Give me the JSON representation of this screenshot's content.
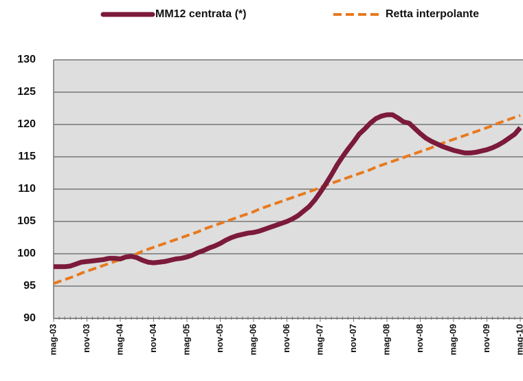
{
  "chart_data": {
    "type": "line",
    "categories": [
      "mag-03",
      null,
      null,
      null,
      null,
      null,
      "nov-03",
      null,
      null,
      null,
      null,
      null,
      "mag-04",
      null,
      null,
      null,
      null,
      null,
      "nov-04",
      null,
      null,
      null,
      null,
      null,
      "mag-05",
      null,
      null,
      null,
      null,
      null,
      "nov-05",
      null,
      null,
      null,
      null,
      null,
      "mag-06",
      null,
      null,
      null,
      null,
      null,
      "nov-06",
      null,
      null,
      null,
      null,
      null,
      "mag-07",
      null,
      null,
      null,
      null,
      null,
      "nov-07",
      null,
      null,
      null,
      null,
      null,
      "mag-08",
      null,
      null,
      null,
      null,
      null,
      "nov-08",
      null,
      null,
      null,
      null,
      null,
      "mag-09",
      null,
      null,
      null,
      null,
      null,
      "nov-09",
      null,
      null,
      null,
      null,
      null,
      "mag-10"
    ],
    "series": [
      {
        "name": "MM12 centrata (*)",
        "color": "#7b1a3a",
        "dash": false,
        "values": [
          98.0,
          98.0,
          98.0,
          98.1,
          98.4,
          98.7,
          98.8,
          98.9,
          99.0,
          99.1,
          99.3,
          99.3,
          99.2,
          99.5,
          99.6,
          99.4,
          99.0,
          98.7,
          98.6,
          98.7,
          98.8,
          99.0,
          99.2,
          99.3,
          99.5,
          99.8,
          100.2,
          100.5,
          100.9,
          101.2,
          101.6,
          102.1,
          102.5,
          102.8,
          103.0,
          103.2,
          103.3,
          103.5,
          103.8,
          104.1,
          104.4,
          104.7,
          105.0,
          105.4,
          105.9,
          106.6,
          107.3,
          108.3,
          109.5,
          110.8,
          112.2,
          113.7,
          115.0,
          116.2,
          117.3,
          118.5,
          119.3,
          120.2,
          120.9,
          121.3,
          121.5,
          121.5,
          121.0,
          120.4,
          120.2,
          119.4,
          118.6,
          117.9,
          117.4,
          117.0,
          116.6,
          116.3,
          116.0,
          115.8,
          115.6,
          115.6,
          115.7,
          115.9,
          116.1,
          116.4,
          116.8,
          117.3,
          117.9,
          118.5,
          119.5
        ]
      },
      {
        "name": "Retta interpolante",
        "color": "#e8791e",
        "dash": true,
        "values": [
          95.4,
          95.7,
          96.0,
          96.3,
          96.6,
          97.0,
          97.3,
          97.6,
          97.9,
          98.2,
          98.5,
          98.8,
          99.1,
          99.4,
          99.7,
          100.0,
          100.4,
          100.7,
          101.0,
          101.3,
          101.6,
          101.9,
          102.2,
          102.5,
          102.8,
          103.1,
          103.4,
          103.8,
          104.1,
          104.4,
          104.7,
          105.0,
          105.3,
          105.6,
          105.9,
          106.2,
          106.5,
          106.9,
          107.2,
          107.5,
          107.8,
          108.1,
          108.4,
          108.7,
          109.0,
          109.3,
          109.6,
          109.9,
          110.3,
          110.6,
          110.9,
          111.2,
          111.5,
          111.8,
          112.1,
          112.4,
          112.7,
          113.0,
          113.4,
          113.7,
          114.0,
          114.3,
          114.6,
          114.9,
          115.2,
          115.5,
          115.8,
          116.1,
          116.4,
          116.8,
          117.1,
          117.4,
          117.7,
          118.0,
          118.3,
          118.6,
          118.9,
          119.2,
          119.5,
          119.8,
          120.2,
          120.5,
          120.8,
          121.1,
          121.4
        ]
      }
    ],
    "ylim": [
      90,
      130
    ],
    "yticks": [
      90,
      95,
      100,
      105,
      110,
      115,
      120,
      125,
      130
    ],
    "grid": true
  }
}
